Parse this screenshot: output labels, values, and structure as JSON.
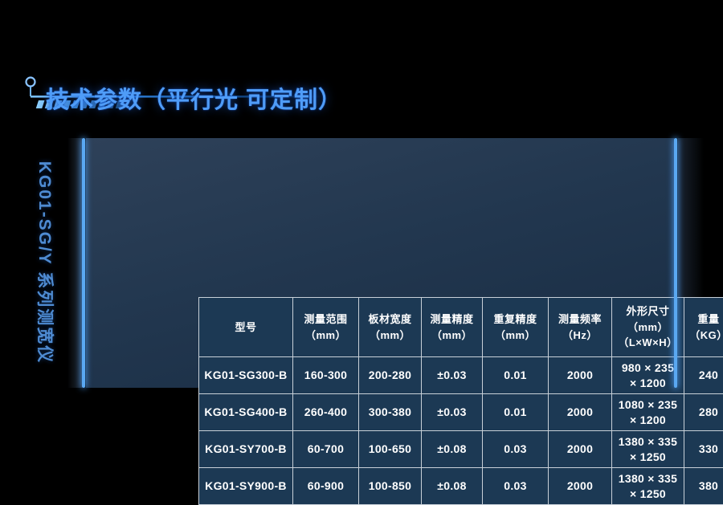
{
  "header": {
    "title": "技术参数（平行光 可定制）"
  },
  "sidebar": {
    "vertical_label": "KG01-SG/Y 系列测宽仪"
  },
  "colors": {
    "accent_blue": "#5aa8f2",
    "title_blue": "#4f9cf7",
    "sidebar_blue": "#4e8bd2",
    "panel_bg_top": "#2e4159",
    "panel_bg_bottom": "#182c43",
    "cell_bg": "#1c3954",
    "table_border": "#c8d0d8",
    "cell_text": "#ffffff",
    "page_bg": "#000000"
  },
  "table": {
    "headers": [
      "型号",
      "测量范围\n（mm）",
      "板材宽度\n（mm）",
      "测量精度\n（mm）",
      "重复精度\n（mm）",
      "测量频率\n（Hz）",
      "外形尺寸\n（mm）\n（L×W×H）",
      "重量\n（KG）"
    ],
    "rows": [
      [
        "KG01-SG300-B",
        "160-300",
        "200-280",
        "±0.03",
        "0.01",
        "2000",
        "980 × 235\n× 1200",
        "240"
      ],
      [
        "KG01-SG400-B",
        "260-400",
        "300-380",
        "±0.03",
        "0.01",
        "2000",
        "1080 × 235\n× 1200",
        "280"
      ],
      [
        "KG01-SY700-B",
        "60-700",
        "100-650",
        "±0.08",
        "0.03",
        "2000",
        "1380 × 335\n× 1250",
        "330"
      ],
      [
        "KG01-SY900-B",
        "60-900",
        "100-850",
        "±0.08",
        "0.03",
        "2000",
        "1380 × 335\n× 1250",
        "380"
      ]
    ]
  }
}
